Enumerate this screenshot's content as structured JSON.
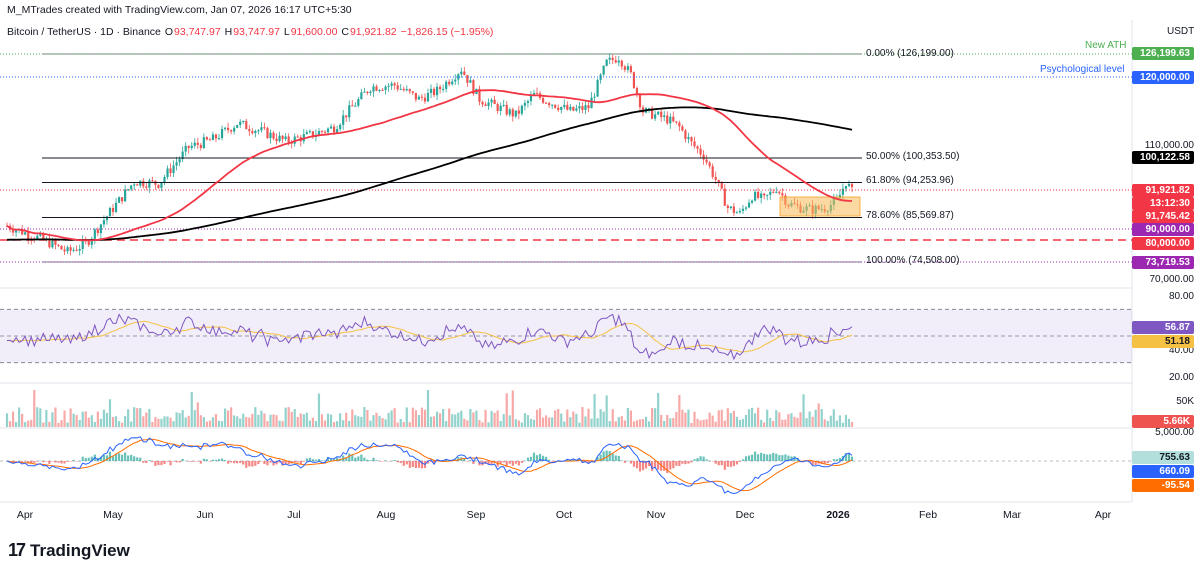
{
  "header": {
    "author_line": "M_MTrades created with TradingView.com, Jan 07, 2026 16:17 UTC+5:30",
    "symbol": "Bitcoin / TetherUS · 1D · Binance",
    "o_label": "O",
    "o_value": "93,747.97",
    "h_label": "H",
    "h_value": "93,747.97",
    "l_label": "L",
    "l_value": "91,600.00",
    "c_label": "C",
    "c_value": "91,921.82",
    "change": "−1,826.15 (−1.95%)"
  },
  "currency": "USDT",
  "annotations": {
    "new_ath": "New ATH",
    "psych_level": "Psychological level"
  },
  "fib_levels": [
    {
      "label": "0.00% (126,199.00)",
      "value": 126199
    },
    {
      "label": "50.00% (100,353.50)",
      "value": 100353.5
    },
    {
      "label": "61.80% (94,253.96)",
      "value": 94253.96
    },
    {
      "label": "78.60% (85,569.87)",
      "value": 85569.87
    },
    {
      "label": "100.00% (74,508.00)",
      "value": 74508
    }
  ],
  "price_labels": [
    {
      "text": "126,199.63",
      "color": "#4caf50"
    },
    {
      "text": "120,000.00",
      "color": "#2962ff"
    },
    {
      "text": "100,122.58",
      "color": "#000000"
    },
    {
      "text": "91,921.82",
      "color": "#f23645"
    },
    {
      "text": "13:12:30",
      "color": "#f23645"
    },
    {
      "text": "91,745.42",
      "color": "#f23645"
    },
    {
      "text": "90,000.00",
      "color": "#9c27b0"
    },
    {
      "text": "80,000.00",
      "color": "#f23645"
    },
    {
      "text": "73,719.53",
      "color": "#9c27b0"
    }
  ],
  "price_ticks": [
    "110,000.00",
    "70,000.00"
  ],
  "rsi": {
    "ticks": [
      "80.00",
      "40.00",
      "20.00"
    ],
    "value": "56.87",
    "ma": "51.18"
  },
  "volume": {
    "tick": "50K",
    "value": "5.66K"
  },
  "macd": {
    "tick": "5,000.00",
    "hist": "755.63",
    "macd": "660.09",
    "signal": "-95.54"
  },
  "x_axis": [
    "Apr",
    "May",
    "Jun",
    "Jul",
    "Aug",
    "Sep",
    "Oct",
    "Nov",
    "Dec",
    "2026",
    "Feb",
    "Mar",
    "Apr"
  ],
  "footer": {
    "brand": "TradingView",
    "logo": "17"
  },
  "colors": {
    "up": "#26a69a",
    "down": "#ef5350",
    "ma50": "#f23645",
    "ma200": "#000000",
    "rsi": "#7e57c2",
    "rsi_ma": "#f5c144",
    "macd": "#2962ff",
    "signal": "#ff6d00"
  },
  "chart_data": {
    "type": "line",
    "title": "Bitcoin / TetherUS · 1D · Binance",
    "x": [
      "Apr",
      "May",
      "Jun",
      "Jul",
      "Aug",
      "Sep",
      "Oct",
      "Nov",
      "Dec",
      "Jan"
    ],
    "series": [
      {
        "name": "",
        "values": [
          82000,
          95000,
          105000,
          107000,
          117000,
          114000,
          119000,
          110000,
          91000,
          91921.82
        ]
      }
    ],
    "ylim": [
      70000,
      130000
    ],
    "grid": false
  }
}
